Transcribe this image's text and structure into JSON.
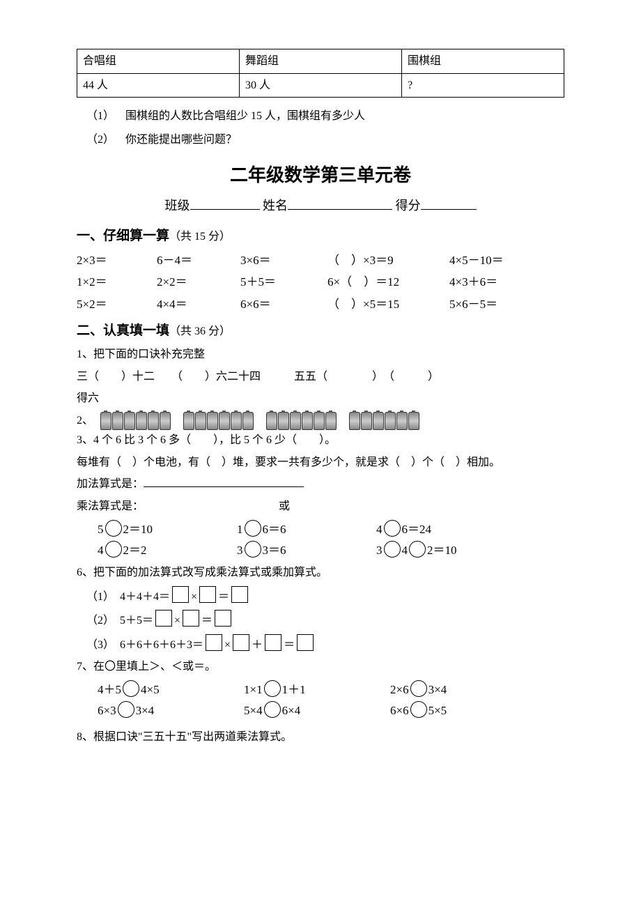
{
  "intro_table": {
    "headers": [
      "合唱组",
      "舞蹈组",
      "围棋组"
    ],
    "row": [
      "44 人",
      "30 人",
      "?"
    ]
  },
  "intro_q1": {
    "num": "（1）",
    "text": "围棋组的人数比合唱组少 15 人，围棋组有多少人"
  },
  "intro_q2": {
    "num": "（2）",
    "text": "你还能提出哪些问题？"
  },
  "title": "二年级数学第三单元卷",
  "header": {
    "class": "班级",
    "name": "姓名",
    "score": "得分"
  },
  "s1": {
    "head": "一、仔细算一算",
    "pts": "（共 15 分）",
    "rows": [
      [
        "2×3＝",
        "6－4＝",
        "3×6＝",
        "（　）×3＝9",
        "4×5－10＝"
      ],
      [
        "1×2＝",
        "2×2＝",
        "5＋5＝",
        "6×（　）＝12",
        "4×3＋6＝"
      ],
      [
        "5×2＝",
        "4×4＝",
        "6×6＝",
        "（　）×5＝15",
        "5×6－5＝"
      ]
    ]
  },
  "s2": {
    "head": "二、认真填一填",
    "pts": "（共 36 分）"
  },
  "q1": {
    "lead": "1、把下面的口诀补充完整",
    "items": "三（　　）十二　　（　　）六二十四　　　五五（　　　　）　（　　　）",
    "tail": "得六"
  },
  "q2": "2、",
  "q3_overlay": "3、4 个 6 比 3 个 6 多（　　），比 5 个 6 少（　　）。",
  "q2_line": "每堆有（　）个电池，有（　）堆，要求一共有多少个，就是求（　）个（　）相加。",
  "q2_add": "加法算式是：",
  "q2_mul": "乘法算式是：",
  "q2_or": "或",
  "q5_rows": [
    [
      {
        "a": "5",
        "b": "2",
        "eq": "＝10"
      },
      {
        "a": "1",
        "b": "6",
        "eq": "＝6"
      },
      {
        "a": "4",
        "b": "6",
        "eq": "＝24"
      }
    ],
    [
      {
        "a": "4",
        "b": "2",
        "eq": "＝2"
      },
      {
        "a": "3",
        "b": "3",
        "eq": "＝6"
      },
      {
        "a": "3",
        "mid": "4",
        "b": "2",
        "eq": "＝10"
      }
    ]
  ],
  "q6": {
    "lead": "6、把下面的加法算式改写成乘法算式或乘加算式。",
    "items": [
      {
        "n": "（1）",
        "pre": "4＋4＋4＝",
        "form": "box×box＝box"
      },
      {
        "n": "（2）",
        "pre": "5＋5＝",
        "form": "box×box＝box"
      },
      {
        "n": "（3）",
        "pre": "6＋6＋6＋6＋3＝",
        "form": "box×box＋box＝box"
      }
    ]
  },
  "q7": {
    "lead": "7、在〇里填上＞、＜或＝。",
    "rows": [
      [
        "4＋5",
        "4×5",
        "1×1",
        "1＋1",
        "2×6",
        "3×4"
      ],
      [
        "6×3",
        "3×4",
        "5×4",
        "6×4",
        "6×6",
        "5×5"
      ]
    ]
  },
  "q8": "8、根据口诀\"三五十五\"写出两道乘法算式。",
  "battery_groups": 4,
  "per_group": 6
}
